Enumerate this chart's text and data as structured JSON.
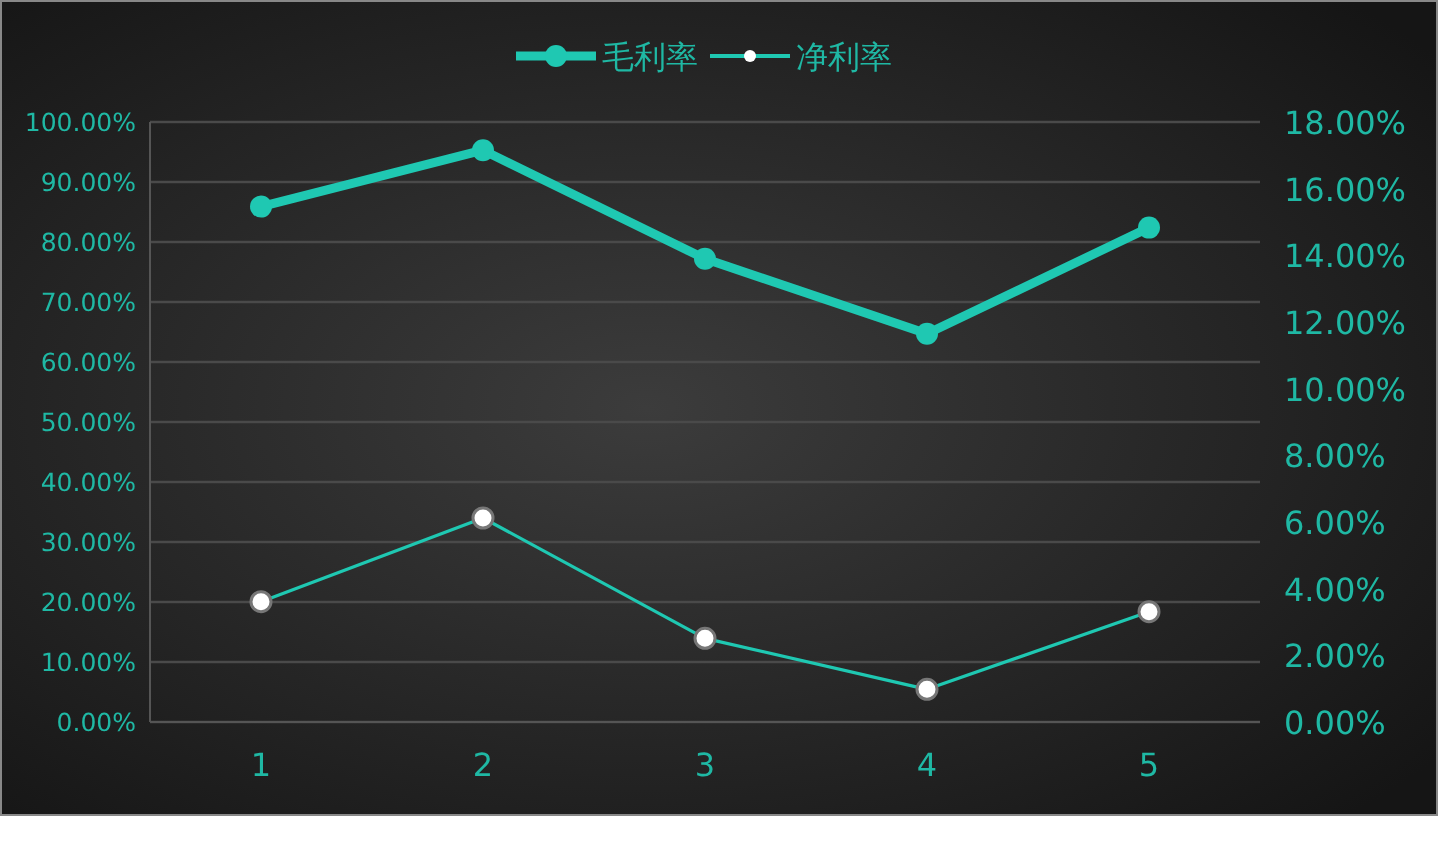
{
  "chart_data": {
    "type": "line",
    "categories": [
      "1",
      "2",
      "3",
      "4",
      "5"
    ],
    "series": [
      {
        "name": "毛利率",
        "color": "#1fc8b2",
        "values": [
          85.9,
          95.3,
          77.2,
          64.7,
          82.4
        ],
        "axis": "y"
      },
      {
        "name": "净利率",
        "color": "#1fc8b2",
        "values": [
          3.61,
          6.12,
          2.51,
          0.98,
          3.31
        ],
        "axis": "y2"
      }
    ],
    "ylim": [
      0,
      100
    ],
    "yticks": [
      {
        "value": 0,
        "label": "0.00%"
      },
      {
        "value": 10,
        "label": "10.00%"
      },
      {
        "value": 20,
        "label": "20.00%"
      },
      {
        "value": 30,
        "label": "30.00%"
      },
      {
        "value": 40,
        "label": "40.00%"
      },
      {
        "value": 50,
        "label": "50.00%"
      },
      {
        "value": 60,
        "label": "60.00%"
      },
      {
        "value": 70,
        "label": "70.00%"
      },
      {
        "value": 80,
        "label": "80.00%"
      },
      {
        "value": 90,
        "label": "90.00%"
      },
      {
        "value": 100,
        "label": "100.00%"
      }
    ],
    "y2lim": [
      0,
      18
    ],
    "y2ticks": [
      {
        "value": 0,
        "label": "0.00%"
      },
      {
        "value": 2,
        "label": "2.00%"
      },
      {
        "value": 4,
        "label": "4.00%"
      },
      {
        "value": 6,
        "label": "6.00%"
      },
      {
        "value": 8,
        "label": "8.00%"
      },
      {
        "value": 10,
        "label": "10.00%"
      },
      {
        "value": 12,
        "label": "12.00%"
      },
      {
        "value": 14,
        "label": "14.00%"
      },
      {
        "value": 16,
        "label": "16.00%"
      },
      {
        "value": 18,
        "label": "18.00%"
      }
    ],
    "grid": "y",
    "legend": "top",
    "marker": "circle",
    "line_style": "solid"
  }
}
